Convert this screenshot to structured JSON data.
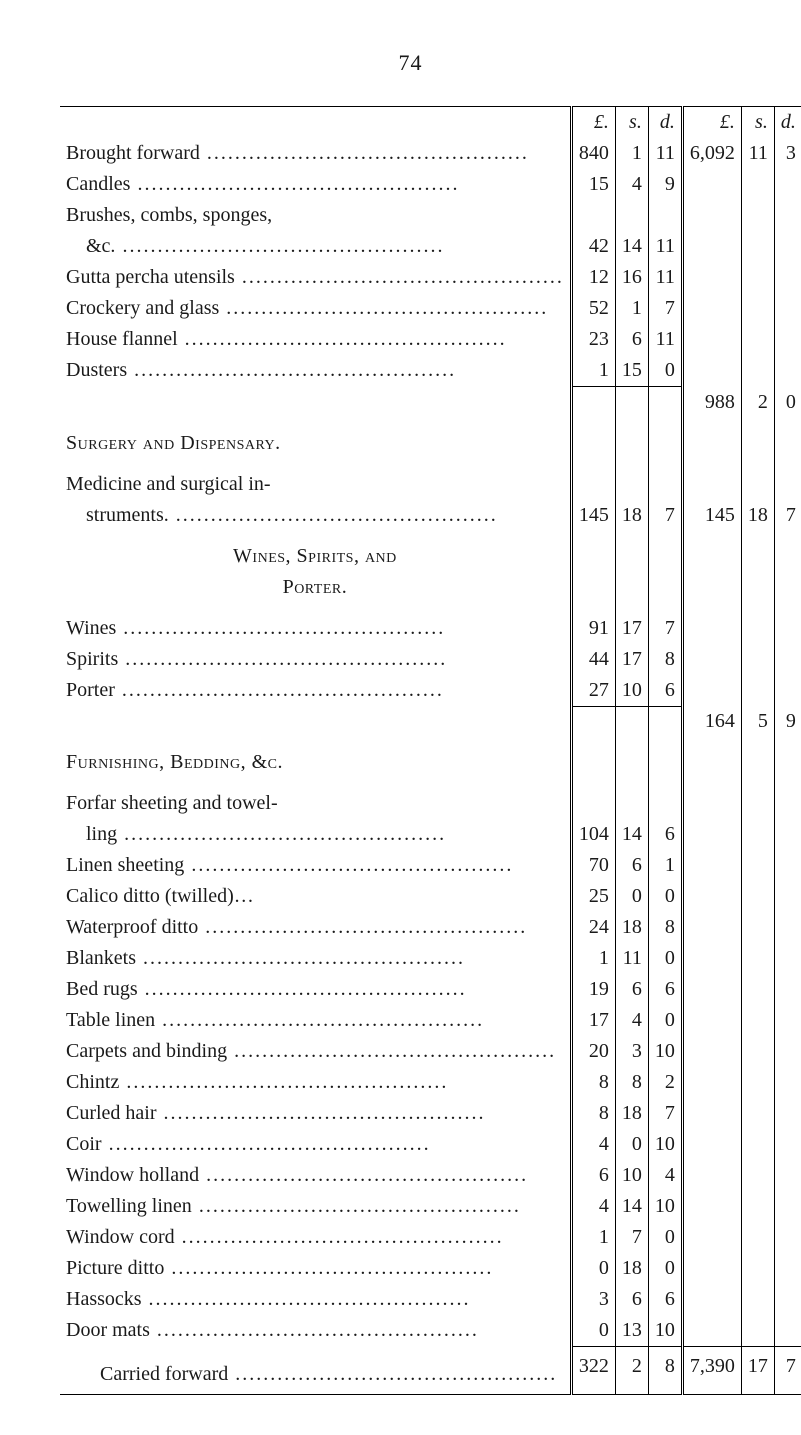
{
  "page_number": "74",
  "currency_headers": {
    "pounds": "£.",
    "shillings": "s.",
    "pence": "d."
  },
  "rows": [
    {
      "type": "header"
    },
    {
      "type": "line",
      "desc": "Brought forward",
      "leader": true,
      "sub": [
        "840",
        "1",
        "11"
      ],
      "tot": [
        "6,092",
        "11",
        "3"
      ]
    },
    {
      "type": "line",
      "desc": "Candles",
      "leader": true,
      "sub": [
        "15",
        "4",
        "9"
      ]
    },
    {
      "type": "line",
      "desc": "Brushes, combs, sponges,",
      "nodots": true
    },
    {
      "type": "line",
      "desc": "&c.",
      "leader": true,
      "indent": 1,
      "sub": [
        "42",
        "14",
        "11"
      ]
    },
    {
      "type": "line",
      "desc": "Gutta percha utensils",
      "leader": true,
      "sub": [
        "12",
        "16",
        "11"
      ]
    },
    {
      "type": "line",
      "desc": "Crockery and glass",
      "leader": true,
      "sub": [
        "52",
        "1",
        "7"
      ]
    },
    {
      "type": "line",
      "desc": "House flannel",
      "leader": true,
      "sub": [
        "23",
        "6",
        "11"
      ]
    },
    {
      "type": "line",
      "desc": "Dusters",
      "leader": true,
      "sub": [
        "1",
        "15",
        "0"
      ]
    },
    {
      "type": "sub_rule_then_total",
      "tot": [
        "988",
        "2",
        "0"
      ]
    },
    {
      "type": "section",
      "desc": "Surgery and Dispensary."
    },
    {
      "type": "line",
      "desc": "Medicine and surgical in-",
      "nodots": true
    },
    {
      "type": "line",
      "desc": "struments.",
      "leader": true,
      "indent": 1,
      "sub": [
        "145",
        "18",
        "7"
      ],
      "tot": [
        "145",
        "18",
        "7"
      ]
    },
    {
      "type": "section_multi",
      "lines": [
        "Wines, Spirits, and",
        "Porter."
      ]
    },
    {
      "type": "line",
      "desc": "Wines",
      "leader": true,
      "sub": [
        "91",
        "17",
        "7"
      ]
    },
    {
      "type": "line",
      "desc": "Spirits",
      "leader": true,
      "sub": [
        "44",
        "17",
        "8"
      ]
    },
    {
      "type": "line",
      "desc": "Porter",
      "leader": true,
      "sub": [
        "27",
        "10",
        "6"
      ]
    },
    {
      "type": "sub_rule_then_total",
      "tot": [
        "164",
        "5",
        "9"
      ]
    },
    {
      "type": "section",
      "desc": "Furnishing, Bedding, &c."
    },
    {
      "type": "line",
      "desc": "Forfar sheeting and towel-",
      "nodots": true
    },
    {
      "type": "line",
      "desc": "ling",
      "leader": true,
      "indent": 1,
      "sub": [
        "104",
        "14",
        "6"
      ]
    },
    {
      "type": "line",
      "desc": "Linen sheeting",
      "leader": true,
      "sub": [
        "70",
        "6",
        "1"
      ]
    },
    {
      "type": "line",
      "desc": "Calico   ditto   (twilled)…",
      "sub": [
        "25",
        "0",
        "0"
      ]
    },
    {
      "type": "line",
      "desc": "Waterproof ditto",
      "leader": true,
      "sub": [
        "24",
        "18",
        "8"
      ]
    },
    {
      "type": "line",
      "desc": "Blankets",
      "leader": true,
      "sub": [
        "1",
        "11",
        "0"
      ]
    },
    {
      "type": "line",
      "desc": "Bed rugs",
      "leader": true,
      "sub": [
        "19",
        "6",
        "6"
      ]
    },
    {
      "type": "line",
      "desc": "Table linen",
      "leader": true,
      "sub": [
        "17",
        "4",
        "0"
      ]
    },
    {
      "type": "line",
      "desc": "Carpets and binding",
      "leader": true,
      "sub": [
        "20",
        "3",
        "10"
      ]
    },
    {
      "type": "line",
      "desc": "Chintz",
      "leader": true,
      "sub": [
        "8",
        "8",
        "2"
      ]
    },
    {
      "type": "line",
      "desc": "Curled hair",
      "leader": true,
      "sub": [
        "8",
        "18",
        "7"
      ]
    },
    {
      "type": "line",
      "desc": "Coir",
      "leader": true,
      "sub": [
        "4",
        "0",
        "10"
      ]
    },
    {
      "type": "line",
      "desc": "Window holland",
      "leader": true,
      "sub": [
        "6",
        "10",
        "4"
      ]
    },
    {
      "type": "line",
      "desc": "Towelling linen",
      "leader": true,
      "sub": [
        "4",
        "14",
        "10"
      ]
    },
    {
      "type": "line",
      "desc": "Window cord",
      "leader": true,
      "sub": [
        "1",
        "7",
        "0"
      ]
    },
    {
      "type": "line",
      "desc": "Picture ditto",
      "leader": true,
      "sub": [
        "0",
        "18",
        "0"
      ]
    },
    {
      "type": "line",
      "desc": "Hassocks",
      "leader": true,
      "sub": [
        "3",
        "6",
        "6"
      ]
    },
    {
      "type": "line",
      "desc": "Door mats",
      "leader": true,
      "sub": [
        "0",
        "13",
        "10"
      ]
    },
    {
      "type": "full_rule"
    },
    {
      "type": "line",
      "desc": "Carried forward",
      "leader": true,
      "sub": [
        "322",
        "2",
        "8"
      ],
      "tot": [
        "7,390",
        "17",
        "7"
      ],
      "carried": true
    },
    {
      "type": "bottom_rule"
    }
  ]
}
